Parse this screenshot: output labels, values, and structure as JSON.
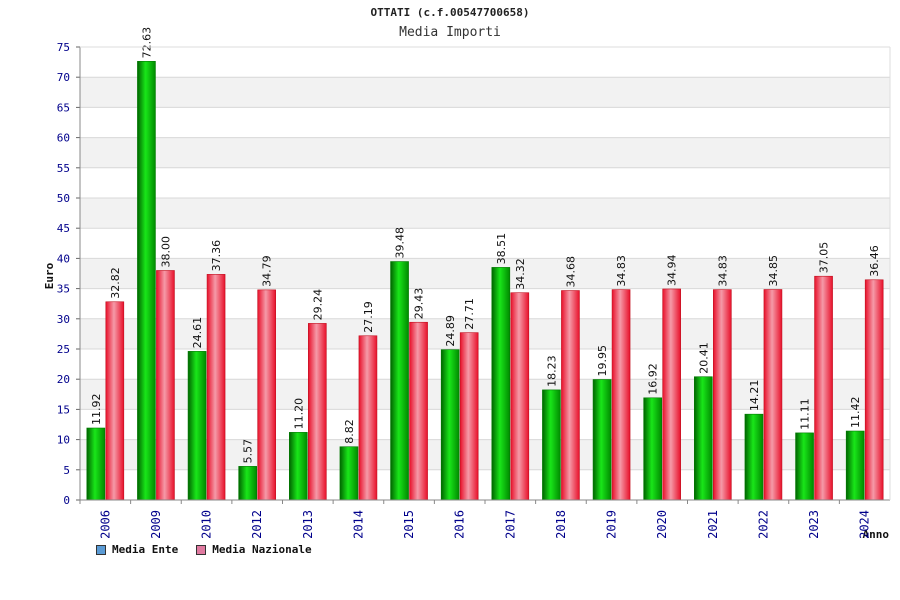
{
  "header": {
    "title": "OTTATI (c.f.00547700658)",
    "subtitle": "Media Importi"
  },
  "chart_data": {
    "type": "bar",
    "title": "OTTATI (c.f.00547700658)",
    "subtitle": "Media Importi",
    "xlabel": "Anno",
    "ylabel": "Euro",
    "ylim": [
      0,
      75
    ],
    "yticks": [
      0,
      5,
      10,
      15,
      20,
      25,
      30,
      35,
      40,
      45,
      50,
      55,
      60,
      65,
      70,
      75
    ],
    "categories": [
      "2006",
      "2009",
      "2010",
      "2012",
      "2013",
      "2014",
      "2015",
      "2016",
      "2017",
      "2018",
      "2019",
      "2020",
      "2021",
      "2022",
      "2023",
      "2024"
    ],
    "series": [
      {
        "name": "Media Ente",
        "color": "#00b000",
        "legend_color": "#5b9bd5",
        "values": [
          11.92,
          72.63,
          24.61,
          5.57,
          11.2,
          8.82,
          39.48,
          24.89,
          38.51,
          18.23,
          19.95,
          16.92,
          20.41,
          14.21,
          11.11,
          11.42
        ],
        "labels": [
          "11.92",
          "72.63",
          "24.61",
          "5.57",
          "11.20",
          "8.82",
          "39.48",
          "24.89",
          "38.51",
          "18.23",
          "19.95",
          "16.92",
          "20.41",
          "14.21",
          "11.11",
          "11.42"
        ]
      },
      {
        "name": "Media Nazionale",
        "color": "#e8202a",
        "legend_color": "#e07aa0",
        "values": [
          32.82,
          38.0,
          37.36,
          34.79,
          29.24,
          27.19,
          29.43,
          27.71,
          34.32,
          34.68,
          34.83,
          34.94,
          34.83,
          34.85,
          37.05,
          36.46
        ],
        "labels": [
          "32.82",
          "38.00",
          "37.36",
          "34.79",
          "29.24",
          "27.19",
          "29.43",
          "27.71",
          "34.32",
          "34.68",
          "34.83",
          "34.94",
          "34.83",
          "34.85",
          "37.05",
          "36.46"
        ]
      }
    ],
    "grid": true,
    "legend_position": "bottom-left"
  }
}
